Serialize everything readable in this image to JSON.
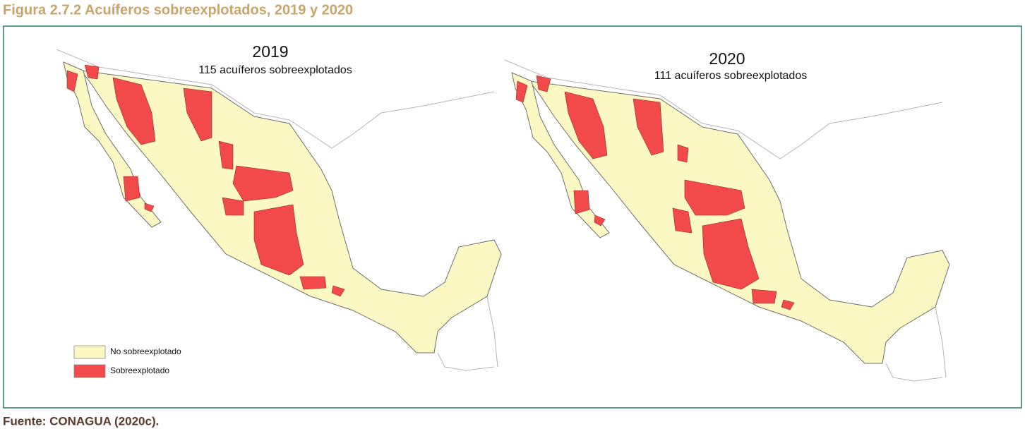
{
  "figure_title": "Figura 2.7.2 Acuíferos sobreexplotados, 2019 y 2020",
  "maps": [
    {
      "title": "2019",
      "subtitle": "115 acuíferos sobreexplotados"
    },
    {
      "title": "2020",
      "subtitle": "111 acuíferos sobreexplotados"
    }
  ],
  "legend": [
    {
      "label": "No sobreexplotado",
      "color": "#fcf8c4"
    },
    {
      "label": "Sobreexplotado",
      "color": "#f24a4a"
    }
  ],
  "source": "Fuente: CONAGUA (2020c)."
}
